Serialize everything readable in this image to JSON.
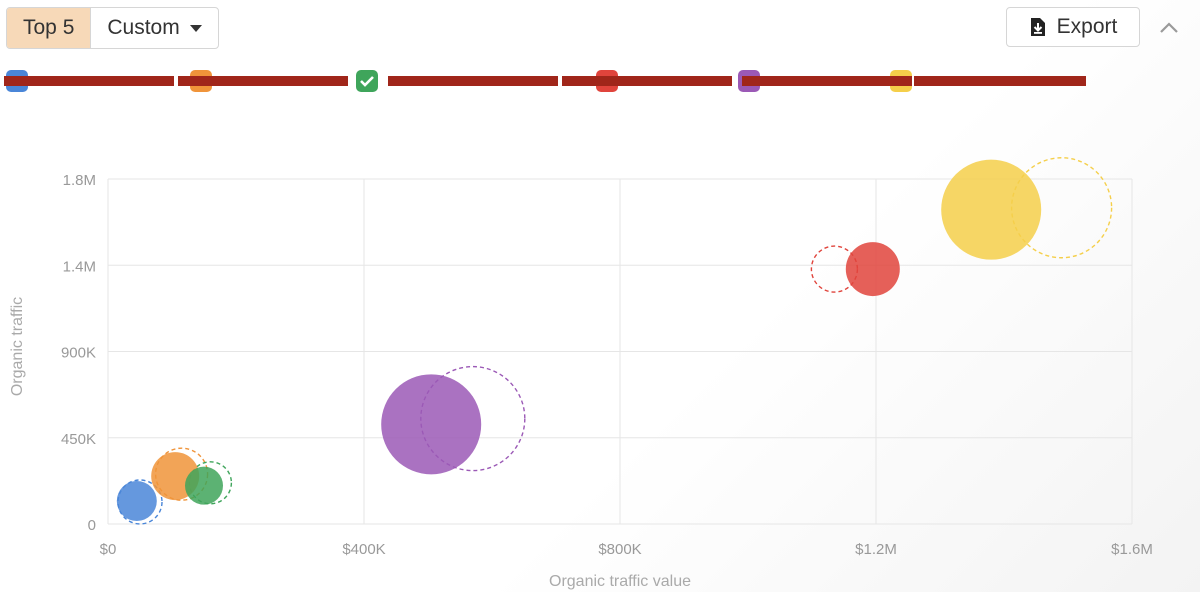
{
  "toolbar": {
    "top5_label": "Top 5",
    "custom_label": "Custom",
    "export_label": "Export"
  },
  "legend": [
    {
      "label": "",
      "color": "#4a86d8",
      "checked": false
    },
    {
      "label": "",
      "color": "#f0943a",
      "checked": false
    },
    {
      "label": "",
      "color": "#3fa55b",
      "checked": true
    },
    {
      "label": "",
      "color": "#e0443c",
      "checked": false
    },
    {
      "label": "",
      "color": "#9b59b6",
      "checked": false
    },
    {
      "label": "",
      "color": "#f5cf4a",
      "checked": false
    }
  ],
  "chart_data": {
    "type": "scatter",
    "title": "",
    "xlabel": "Organic traffic value",
    "ylabel": "Organic traffic",
    "xlim": [
      0,
      1600000
    ],
    "ylim": [
      0,
      1800000
    ],
    "x_ticks": [
      "$0",
      "$400K",
      "$800K",
      "$1.2M",
      "$1.6M"
    ],
    "y_ticks": [
      "0",
      "450K",
      "900K",
      "1.4M",
      "1.8M"
    ],
    "grid": true,
    "series": [
      {
        "color": "#4a86d8",
        "current": {
          "x": 45000,
          "y": 120000,
          "size": 20
        },
        "previous": {
          "x": 50000,
          "y": 115000,
          "size": 22
        }
      },
      {
        "color": "#f0943a",
        "current": {
          "x": 105000,
          "y": 250000,
          "size": 24
        },
        "previous": {
          "x": 115000,
          "y": 260000,
          "size": 26
        }
      },
      {
        "color": "#3fa55b",
        "current": {
          "x": 150000,
          "y": 200000,
          "size": 19
        },
        "previous": {
          "x": 160000,
          "y": 215000,
          "size": 21
        }
      },
      {
        "color": "#e0443c",
        "current": {
          "x": 1195000,
          "y": 1330000,
          "size": 27
        },
        "previous": {
          "x": 1135000,
          "y": 1330000,
          "size": 23
        }
      },
      {
        "color": "#9b59b6",
        "current": {
          "x": 505000,
          "y": 520000,
          "size": 50
        },
        "previous": {
          "x": 570000,
          "y": 550000,
          "size": 52
        }
      },
      {
        "color": "#f5cf4a",
        "current": {
          "x": 1380000,
          "y": 1640000,
          "size": 50
        },
        "previous": {
          "x": 1490000,
          "y": 1650000,
          "size": 50
        }
      }
    ]
  }
}
